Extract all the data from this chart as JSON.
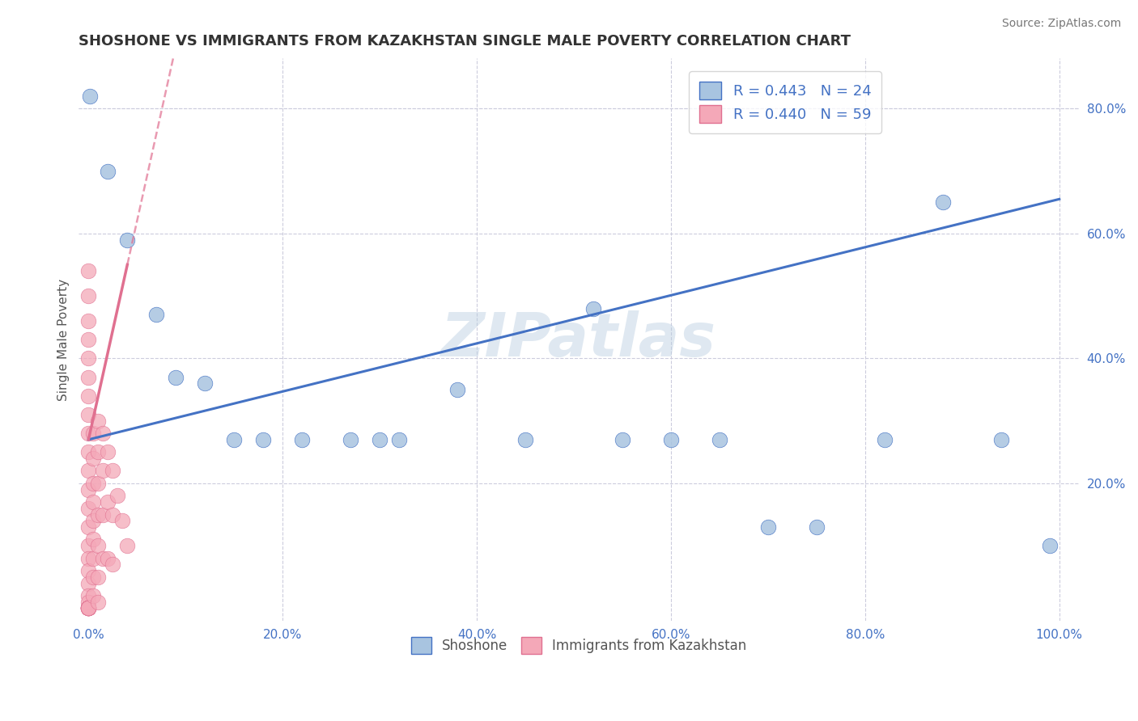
{
  "title": "SHOSHONE VS IMMIGRANTS FROM KAZAKHSTAN SINGLE MALE POVERTY CORRELATION CHART",
  "source": "Source: ZipAtlas.com",
  "ylabel": "Single Male Poverty",
  "xlim": [
    -0.01,
    1.02
  ],
  "ylim": [
    -0.02,
    0.88
  ],
  "xticks": [
    0.0,
    0.2,
    0.4,
    0.6,
    0.8,
    1.0
  ],
  "xtick_labels": [
    "0.0%",
    "20.0%",
    "40.0%",
    "60.0%",
    "80.0%",
    "100.0%"
  ],
  "yticks": [
    0.0,
    0.2,
    0.4,
    0.6,
    0.8
  ],
  "ytick_labels": [
    "",
    "20.0%",
    "40.0%",
    "60.0%",
    "80.0%"
  ],
  "legend1_R": "0.443",
  "legend1_N": "24",
  "legend2_R": "0.440",
  "legend2_N": "59",
  "shoshone_color": "#a8c4e0",
  "kazakhstan_color": "#f4a8b8",
  "shoshone_edge_color": "#4472c4",
  "kazakhstan_edge_color": "#e07090",
  "shoshone_line_color": "#4472c4",
  "kazakhstan_line_color": "#e07090",
  "watermark_text": "ZIPatlas",
  "shoshone_x": [
    0.001,
    0.02,
    0.04,
    0.07,
    0.09,
    0.12,
    0.15,
    0.18,
    0.22,
    0.27,
    0.32,
    0.38,
    0.45,
    0.52,
    0.55,
    0.6,
    0.65,
    0.7,
    0.75,
    0.82,
    0.88,
    0.94,
    0.99,
    0.3
  ],
  "shoshone_y": [
    0.82,
    0.7,
    0.59,
    0.47,
    0.37,
    0.36,
    0.27,
    0.27,
    0.27,
    0.27,
    0.27,
    0.35,
    0.27,
    0.48,
    0.27,
    0.27,
    0.27,
    0.13,
    0.13,
    0.27,
    0.65,
    0.27,
    0.1,
    0.27
  ],
  "kazakhstan_x": [
    0.0,
    0.0,
    0.0,
    0.0,
    0.0,
    0.0,
    0.0,
    0.0,
    0.0,
    0.0,
    0.0,
    0.0,
    0.0,
    0.0,
    0.0,
    0.0,
    0.0,
    0.0,
    0.0,
    0.0,
    0.0,
    0.0,
    0.0,
    0.0,
    0.0,
    0.0,
    0.0,
    0.0,
    0.0,
    0.0,
    0.005,
    0.005,
    0.005,
    0.005,
    0.005,
    0.005,
    0.005,
    0.005,
    0.005,
    0.01,
    0.01,
    0.01,
    0.01,
    0.01,
    0.01,
    0.01,
    0.015,
    0.015,
    0.015,
    0.015,
    0.02,
    0.02,
    0.02,
    0.025,
    0.025,
    0.025,
    0.03,
    0.035,
    0.04
  ],
  "kazakhstan_y": [
    0.54,
    0.5,
    0.46,
    0.43,
    0.4,
    0.37,
    0.34,
    0.31,
    0.28,
    0.25,
    0.22,
    0.19,
    0.16,
    0.13,
    0.1,
    0.08,
    0.06,
    0.04,
    0.02,
    0.01,
    0.0,
    0.0,
    0.0,
    0.0,
    0.0,
    0.0,
    0.0,
    0.0,
    0.0,
    0.0,
    0.28,
    0.24,
    0.2,
    0.17,
    0.14,
    0.11,
    0.08,
    0.05,
    0.02,
    0.3,
    0.25,
    0.2,
    0.15,
    0.1,
    0.05,
    0.01,
    0.28,
    0.22,
    0.15,
    0.08,
    0.25,
    0.17,
    0.08,
    0.22,
    0.15,
    0.07,
    0.18,
    0.14,
    0.1
  ],
  "background_color": "#ffffff",
  "grid_color": "#ccccdd"
}
